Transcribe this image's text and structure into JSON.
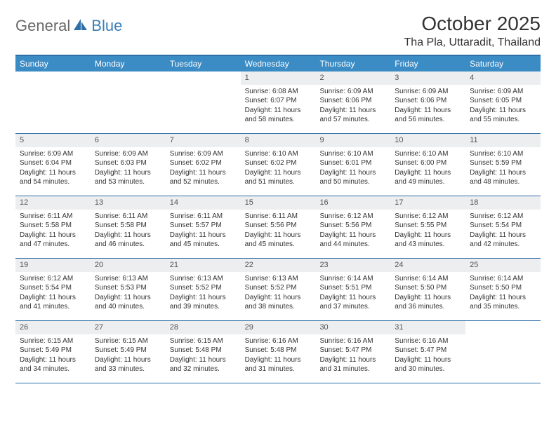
{
  "logo": {
    "part1": "General",
    "part2": "Blue"
  },
  "title": "October 2025",
  "location": "Tha Pla, Uttaradit, Thailand",
  "colors": {
    "header_bg": "#3b8bc4",
    "header_border": "#2f6fa8",
    "daynum_bg": "#eceeef",
    "logo_gray": "#6a6a6a",
    "logo_blue": "#3b7fb8"
  },
  "weekdays": [
    "Sunday",
    "Monday",
    "Tuesday",
    "Wednesday",
    "Thursday",
    "Friday",
    "Saturday"
  ],
  "weeks": [
    [
      {
        "n": "",
        "sr": "",
        "ss": "",
        "dl1": "",
        "dl2": ""
      },
      {
        "n": "",
        "sr": "",
        "ss": "",
        "dl1": "",
        "dl2": ""
      },
      {
        "n": "",
        "sr": "",
        "ss": "",
        "dl1": "",
        "dl2": ""
      },
      {
        "n": "1",
        "sr": "Sunrise: 6:08 AM",
        "ss": "Sunset: 6:07 PM",
        "dl1": "Daylight: 11 hours",
        "dl2": "and 58 minutes."
      },
      {
        "n": "2",
        "sr": "Sunrise: 6:09 AM",
        "ss": "Sunset: 6:06 PM",
        "dl1": "Daylight: 11 hours",
        "dl2": "and 57 minutes."
      },
      {
        "n": "3",
        "sr": "Sunrise: 6:09 AM",
        "ss": "Sunset: 6:06 PM",
        "dl1": "Daylight: 11 hours",
        "dl2": "and 56 minutes."
      },
      {
        "n": "4",
        "sr": "Sunrise: 6:09 AM",
        "ss": "Sunset: 6:05 PM",
        "dl1": "Daylight: 11 hours",
        "dl2": "and 55 minutes."
      }
    ],
    [
      {
        "n": "5",
        "sr": "Sunrise: 6:09 AM",
        "ss": "Sunset: 6:04 PM",
        "dl1": "Daylight: 11 hours",
        "dl2": "and 54 minutes."
      },
      {
        "n": "6",
        "sr": "Sunrise: 6:09 AM",
        "ss": "Sunset: 6:03 PM",
        "dl1": "Daylight: 11 hours",
        "dl2": "and 53 minutes."
      },
      {
        "n": "7",
        "sr": "Sunrise: 6:09 AM",
        "ss": "Sunset: 6:02 PM",
        "dl1": "Daylight: 11 hours",
        "dl2": "and 52 minutes."
      },
      {
        "n": "8",
        "sr": "Sunrise: 6:10 AM",
        "ss": "Sunset: 6:02 PM",
        "dl1": "Daylight: 11 hours",
        "dl2": "and 51 minutes."
      },
      {
        "n": "9",
        "sr": "Sunrise: 6:10 AM",
        "ss": "Sunset: 6:01 PM",
        "dl1": "Daylight: 11 hours",
        "dl2": "and 50 minutes."
      },
      {
        "n": "10",
        "sr": "Sunrise: 6:10 AM",
        "ss": "Sunset: 6:00 PM",
        "dl1": "Daylight: 11 hours",
        "dl2": "and 49 minutes."
      },
      {
        "n": "11",
        "sr": "Sunrise: 6:10 AM",
        "ss": "Sunset: 5:59 PM",
        "dl1": "Daylight: 11 hours",
        "dl2": "and 48 minutes."
      }
    ],
    [
      {
        "n": "12",
        "sr": "Sunrise: 6:11 AM",
        "ss": "Sunset: 5:58 PM",
        "dl1": "Daylight: 11 hours",
        "dl2": "and 47 minutes."
      },
      {
        "n": "13",
        "sr": "Sunrise: 6:11 AM",
        "ss": "Sunset: 5:58 PM",
        "dl1": "Daylight: 11 hours",
        "dl2": "and 46 minutes."
      },
      {
        "n": "14",
        "sr": "Sunrise: 6:11 AM",
        "ss": "Sunset: 5:57 PM",
        "dl1": "Daylight: 11 hours",
        "dl2": "and 45 minutes."
      },
      {
        "n": "15",
        "sr": "Sunrise: 6:11 AM",
        "ss": "Sunset: 5:56 PM",
        "dl1": "Daylight: 11 hours",
        "dl2": "and 45 minutes."
      },
      {
        "n": "16",
        "sr": "Sunrise: 6:12 AM",
        "ss": "Sunset: 5:56 PM",
        "dl1": "Daylight: 11 hours",
        "dl2": "and 44 minutes."
      },
      {
        "n": "17",
        "sr": "Sunrise: 6:12 AM",
        "ss": "Sunset: 5:55 PM",
        "dl1": "Daylight: 11 hours",
        "dl2": "and 43 minutes."
      },
      {
        "n": "18",
        "sr": "Sunrise: 6:12 AM",
        "ss": "Sunset: 5:54 PM",
        "dl1": "Daylight: 11 hours",
        "dl2": "and 42 minutes."
      }
    ],
    [
      {
        "n": "19",
        "sr": "Sunrise: 6:12 AM",
        "ss": "Sunset: 5:54 PM",
        "dl1": "Daylight: 11 hours",
        "dl2": "and 41 minutes."
      },
      {
        "n": "20",
        "sr": "Sunrise: 6:13 AM",
        "ss": "Sunset: 5:53 PM",
        "dl1": "Daylight: 11 hours",
        "dl2": "and 40 minutes."
      },
      {
        "n": "21",
        "sr": "Sunrise: 6:13 AM",
        "ss": "Sunset: 5:52 PM",
        "dl1": "Daylight: 11 hours",
        "dl2": "and 39 minutes."
      },
      {
        "n": "22",
        "sr": "Sunrise: 6:13 AM",
        "ss": "Sunset: 5:52 PM",
        "dl1": "Daylight: 11 hours",
        "dl2": "and 38 minutes."
      },
      {
        "n": "23",
        "sr": "Sunrise: 6:14 AM",
        "ss": "Sunset: 5:51 PM",
        "dl1": "Daylight: 11 hours",
        "dl2": "and 37 minutes."
      },
      {
        "n": "24",
        "sr": "Sunrise: 6:14 AM",
        "ss": "Sunset: 5:50 PM",
        "dl1": "Daylight: 11 hours",
        "dl2": "and 36 minutes."
      },
      {
        "n": "25",
        "sr": "Sunrise: 6:14 AM",
        "ss": "Sunset: 5:50 PM",
        "dl1": "Daylight: 11 hours",
        "dl2": "and 35 minutes."
      }
    ],
    [
      {
        "n": "26",
        "sr": "Sunrise: 6:15 AM",
        "ss": "Sunset: 5:49 PM",
        "dl1": "Daylight: 11 hours",
        "dl2": "and 34 minutes."
      },
      {
        "n": "27",
        "sr": "Sunrise: 6:15 AM",
        "ss": "Sunset: 5:49 PM",
        "dl1": "Daylight: 11 hours",
        "dl2": "and 33 minutes."
      },
      {
        "n": "28",
        "sr": "Sunrise: 6:15 AM",
        "ss": "Sunset: 5:48 PM",
        "dl1": "Daylight: 11 hours",
        "dl2": "and 32 minutes."
      },
      {
        "n": "29",
        "sr": "Sunrise: 6:16 AM",
        "ss": "Sunset: 5:48 PM",
        "dl1": "Daylight: 11 hours",
        "dl2": "and 31 minutes."
      },
      {
        "n": "30",
        "sr": "Sunrise: 6:16 AM",
        "ss": "Sunset: 5:47 PM",
        "dl1": "Daylight: 11 hours",
        "dl2": "and 31 minutes."
      },
      {
        "n": "31",
        "sr": "Sunrise: 6:16 AM",
        "ss": "Sunset: 5:47 PM",
        "dl1": "Daylight: 11 hours",
        "dl2": "and 30 minutes."
      },
      {
        "n": "",
        "sr": "",
        "ss": "",
        "dl1": "",
        "dl2": ""
      }
    ]
  ]
}
